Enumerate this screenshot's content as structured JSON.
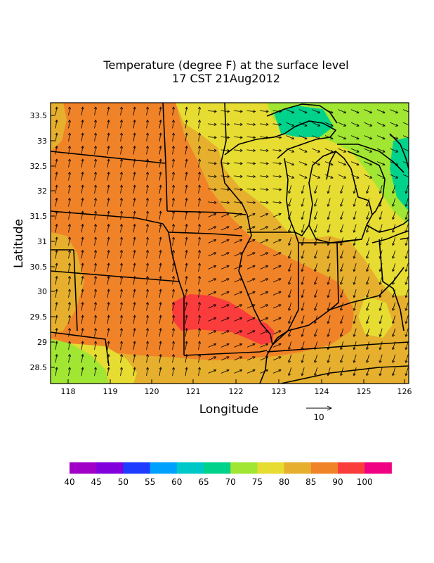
{
  "title": {
    "line1": "Temperature (degree F) at the surface level",
    "line2": "17 CST 21Aug2012"
  },
  "axes": {
    "xlabel": "Longitude",
    "ylabel": "Latitude",
    "x_ticks": [
      "118",
      "119",
      "120",
      "121",
      "122",
      "123",
      "124",
      "125",
      "126"
    ],
    "y_ticks": [
      "33.5",
      "33",
      "32.5",
      "32",
      "31.5",
      "31",
      "30.5",
      "30",
      "29.5",
      "29",
      "28.5"
    ]
  },
  "vector_reference": {
    "label": "10"
  },
  "colorbar": {
    "colors": [
      "#a000c8",
      "#8200dc",
      "#1e3cff",
      "#00a0ff",
      "#00c8c8",
      "#00d28c",
      "#a0e632",
      "#e6dc32",
      "#e6af2d",
      "#f08228",
      "#fa3c3c",
      "#f00082"
    ],
    "labels": [
      "40",
      "45",
      "50",
      "55",
      "60",
      "65",
      "70",
      "75",
      "80",
      "85",
      "90",
      "100"
    ]
  },
  "field_colors": {
    "c70": "#a0e632",
    "c75": "#e6dc32",
    "c80": "#e6af2d",
    "c85": "#f08228",
    "c90": "#fa3c3c",
    "c65": "#00d28c"
  }
}
